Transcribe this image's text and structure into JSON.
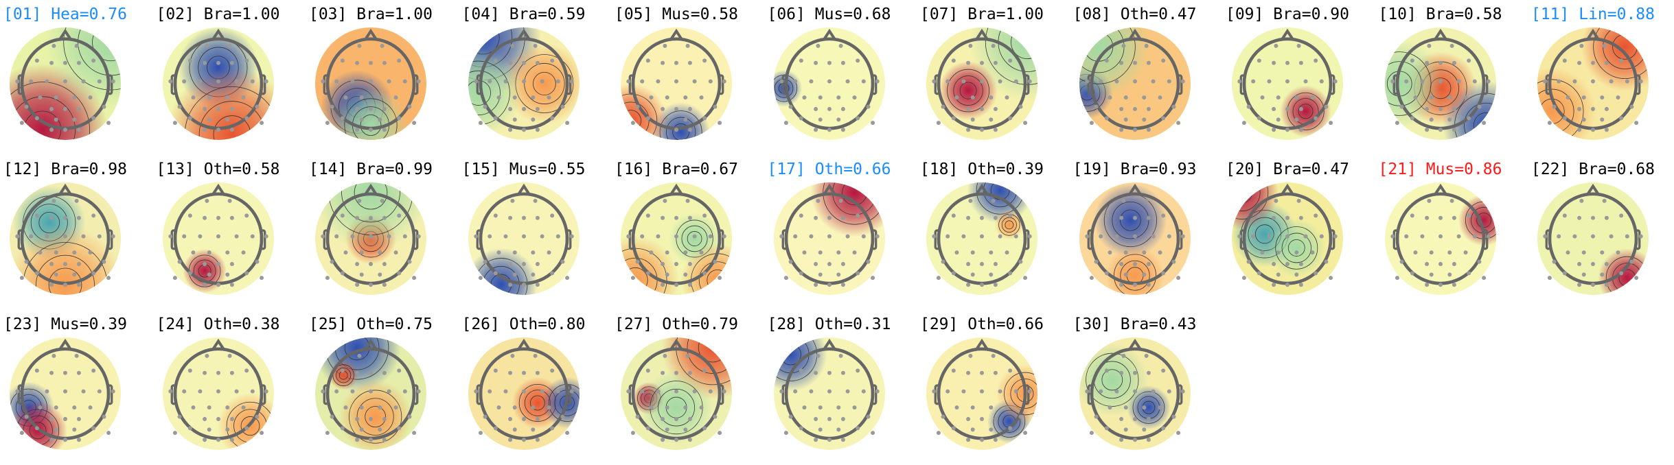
{
  "colors": {
    "default": "#000000",
    "blue": "#1a8cff",
    "red": "#ff1a1a"
  },
  "components": [
    {
      "index": "01",
      "label": "Hea",
      "score": "0.76",
      "title": "[01] Hea=0.76",
      "title_color": "#1a8cff"
    },
    {
      "index": "02",
      "label": "Bra",
      "score": "1.00",
      "title": "[02] Bra=1.00",
      "title_color": "#000000"
    },
    {
      "index": "03",
      "label": "Bra",
      "score": "1.00",
      "title": "[03] Bra=1.00",
      "title_color": "#000000"
    },
    {
      "index": "04",
      "label": "Bra",
      "score": "0.59",
      "title": "[04] Bra=0.59",
      "title_color": "#000000"
    },
    {
      "index": "05",
      "label": "Mus",
      "score": "0.58",
      "title": "[05] Mus=0.58",
      "title_color": "#000000"
    },
    {
      "index": "06",
      "label": "Mus",
      "score": "0.68",
      "title": "[06] Mus=0.68",
      "title_color": "#000000"
    },
    {
      "index": "07",
      "label": "Bra",
      "score": "1.00",
      "title": "[07] Bra=1.00",
      "title_color": "#000000"
    },
    {
      "index": "08",
      "label": "Oth",
      "score": "0.47",
      "title": "[08] Oth=0.47",
      "title_color": "#000000"
    },
    {
      "index": "09",
      "label": "Bra",
      "score": "0.90",
      "title": "[09] Bra=0.90",
      "title_color": "#000000"
    },
    {
      "index": "10",
      "label": "Bra",
      "score": "0.58",
      "title": "[10] Bra=0.58",
      "title_color": "#000000"
    },
    {
      "index": "11",
      "label": "Lin",
      "score": "0.88",
      "title": "[11] Lin=0.88",
      "title_color": "#1a8cff"
    },
    {
      "index": "12",
      "label": "Bra",
      "score": "0.98",
      "title": "[12] Bra=0.98",
      "title_color": "#000000"
    },
    {
      "index": "13",
      "label": "Oth",
      "score": "0.58",
      "title": "[13] Oth=0.58",
      "title_color": "#000000"
    },
    {
      "index": "14",
      "label": "Bra",
      "score": "0.99",
      "title": "[14] Bra=0.99",
      "title_color": "#000000"
    },
    {
      "index": "15",
      "label": "Mus",
      "score": "0.55",
      "title": "[15] Mus=0.55",
      "title_color": "#000000"
    },
    {
      "index": "16",
      "label": "Bra",
      "score": "0.67",
      "title": "[16] Bra=0.67",
      "title_color": "#000000"
    },
    {
      "index": "17",
      "label": "Oth",
      "score": "0.66",
      "title": "[17] Oth=0.66",
      "title_color": "#1a8cff"
    },
    {
      "index": "18",
      "label": "Oth",
      "score": "0.39",
      "title": "[18] Oth=0.39",
      "title_color": "#000000"
    },
    {
      "index": "19",
      "label": "Bra",
      "score": "0.93",
      "title": "[19] Bra=0.93",
      "title_color": "#000000"
    },
    {
      "index": "20",
      "label": "Bra",
      "score": "0.47",
      "title": "[20] Bra=0.47",
      "title_color": "#000000"
    },
    {
      "index": "21",
      "label": "Mus",
      "score": "0.86",
      "title": "[21] Mus=0.86",
      "title_color": "#ff1a1a"
    },
    {
      "index": "22",
      "label": "Bra",
      "score": "0.68",
      "title": "[22] Bra=0.68",
      "title_color": "#000000"
    },
    {
      "index": "23",
      "label": "Mus",
      "score": "0.39",
      "title": "[23] Mus=0.39",
      "title_color": "#000000"
    },
    {
      "index": "24",
      "label": "Oth",
      "score": "0.38",
      "title": "[24] Oth=0.38",
      "title_color": "#000000"
    },
    {
      "index": "25",
      "label": "Oth",
      "score": "0.75",
      "title": "[25] Oth=0.75",
      "title_color": "#000000"
    },
    {
      "index": "26",
      "label": "Oth",
      "score": "0.80",
      "title": "[26] Oth=0.80",
      "title_color": "#000000"
    },
    {
      "index": "27",
      "label": "Oth",
      "score": "0.79",
      "title": "[27] Oth=0.79",
      "title_color": "#000000"
    },
    {
      "index": "28",
      "label": "Oth",
      "score": "0.31",
      "title": "[28] Oth=0.31",
      "title_color": "#000000"
    },
    {
      "index": "29",
      "label": "Oth",
      "score": "0.66",
      "title": "[29] Oth=0.66",
      "title_color": "#000000"
    },
    {
      "index": "30",
      "label": "Bra",
      "score": "0.43",
      "title": "[30] Bra=0.43",
      "title_color": "#000000"
    }
  ]
}
